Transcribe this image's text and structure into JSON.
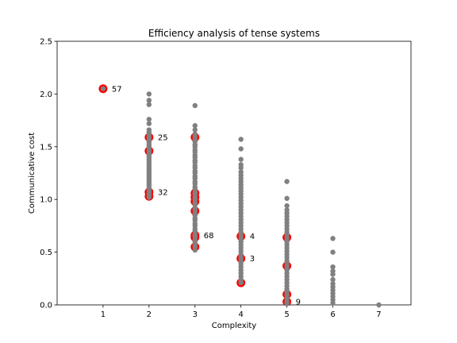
{
  "chart_data": {
    "type": "scatter",
    "title": "Efficiency analysis of tense systems",
    "xlabel": "Complexity",
    "ylabel": "Communicative cost",
    "xlim": [
      0,
      7.7
    ],
    "ylim": [
      0,
      2.5
    ],
    "xticks": [
      1,
      2,
      3,
      4,
      5,
      6,
      7
    ],
    "yticks": [
      0.0,
      0.5,
      1.0,
      1.5,
      2.0,
      2.5
    ],
    "ytick_labels": [
      "0.0",
      "0.5",
      "1.0",
      "1.5",
      "2.0",
      "2.5"
    ],
    "grid": false,
    "colors": {
      "all_systems": "#808080",
      "highlight": "#ff0000"
    },
    "all_systems": [
      {
        "x": 1,
        "y": [
          2.05
        ]
      },
      {
        "x": 2,
        "y": [
          2.0,
          1.94,
          1.9,
          1.76,
          1.72,
          1.66,
          1.64,
          1.62,
          1.6,
          1.58,
          1.56,
          1.54,
          1.52,
          1.5,
          1.48,
          1.46,
          1.44,
          1.42,
          1.4,
          1.38,
          1.36,
          1.34,
          1.32,
          1.3,
          1.28,
          1.26,
          1.24,
          1.22,
          1.2,
          1.18,
          1.16,
          1.14,
          1.12,
          1.1,
          1.08,
          1.06,
          1.04,
          1.02
        ]
      },
      {
        "x": 3,
        "y": [
          1.89,
          1.7,
          1.66,
          1.62,
          1.6,
          1.57,
          1.55,
          1.52,
          1.5,
          1.47,
          1.45,
          1.42,
          1.4,
          1.37,
          1.35,
          1.32,
          1.3,
          1.27,
          1.25,
          1.22,
          1.2,
          1.17,
          1.15,
          1.12,
          1.1,
          1.07,
          1.05,
          1.02,
          1.0,
          0.97,
          0.95,
          0.92,
          0.9,
          0.87,
          0.85,
          0.82,
          0.8,
          0.77,
          0.75,
          0.72,
          0.7,
          0.67,
          0.65,
          0.62,
          0.6,
          0.57,
          0.55,
          0.52
        ]
      },
      {
        "x": 4,
        "y": [
          1.57,
          1.48,
          1.38,
          1.33,
          1.3,
          1.26,
          1.23,
          1.2,
          1.17,
          1.14,
          1.11,
          1.08,
          1.05,
          1.02,
          0.99,
          0.96,
          0.93,
          0.9,
          0.87,
          0.84,
          0.81,
          0.78,
          0.75,
          0.72,
          0.69,
          0.66,
          0.63,
          0.6,
          0.57,
          0.54,
          0.51,
          0.48,
          0.45,
          0.42,
          0.39,
          0.36,
          0.33,
          0.3,
          0.27,
          0.24,
          0.21
        ]
      },
      {
        "x": 5,
        "y": [
          1.17,
          1.01,
          0.94,
          0.9,
          0.87,
          0.84,
          0.81,
          0.78,
          0.75,
          0.72,
          0.69,
          0.66,
          0.63,
          0.6,
          0.57,
          0.54,
          0.51,
          0.48,
          0.45,
          0.42,
          0.39,
          0.36,
          0.33,
          0.3,
          0.27,
          0.24,
          0.21,
          0.18,
          0.15,
          0.12,
          0.09,
          0.06,
          0.03,
          0.01
        ]
      },
      {
        "x": 6,
        "y": [
          0.63,
          0.5,
          0.36,
          0.32,
          0.29,
          0.24,
          0.2,
          0.17,
          0.14,
          0.11,
          0.08,
          0.05,
          0.02
        ]
      },
      {
        "x": 7,
        "y": [
          0.0
        ]
      }
    ],
    "highlighted": [
      {
        "x": 1,
        "y": 2.05,
        "label": "57"
      },
      {
        "x": 2,
        "y": 1.59,
        "label": "25"
      },
      {
        "x": 2,
        "y": 1.46,
        "label": ""
      },
      {
        "x": 2,
        "y": 1.07,
        "label": "32"
      },
      {
        "x": 2,
        "y": 1.03,
        "label": ""
      },
      {
        "x": 3,
        "y": 1.59,
        "label": ""
      },
      {
        "x": 3,
        "y": 1.06,
        "label": ""
      },
      {
        "x": 3,
        "y": 1.02,
        "label": ""
      },
      {
        "x": 3,
        "y": 0.98,
        "label": ""
      },
      {
        "x": 3,
        "y": 0.89,
        "label": ""
      },
      {
        "x": 3,
        "y": 0.66,
        "label": "68"
      },
      {
        "x": 3,
        "y": 0.64,
        "label": ""
      },
      {
        "x": 3,
        "y": 0.55,
        "label": ""
      },
      {
        "x": 4,
        "y": 0.65,
        "label": "4"
      },
      {
        "x": 4,
        "y": 0.44,
        "label": "3"
      },
      {
        "x": 4,
        "y": 0.21,
        "label": ""
      },
      {
        "x": 5,
        "y": 0.64,
        "label": ""
      },
      {
        "x": 5,
        "y": 0.37,
        "label": ""
      },
      {
        "x": 5,
        "y": 0.1,
        "label": ""
      },
      {
        "x": 5,
        "y": 0.03,
        "label": "9"
      }
    ]
  }
}
